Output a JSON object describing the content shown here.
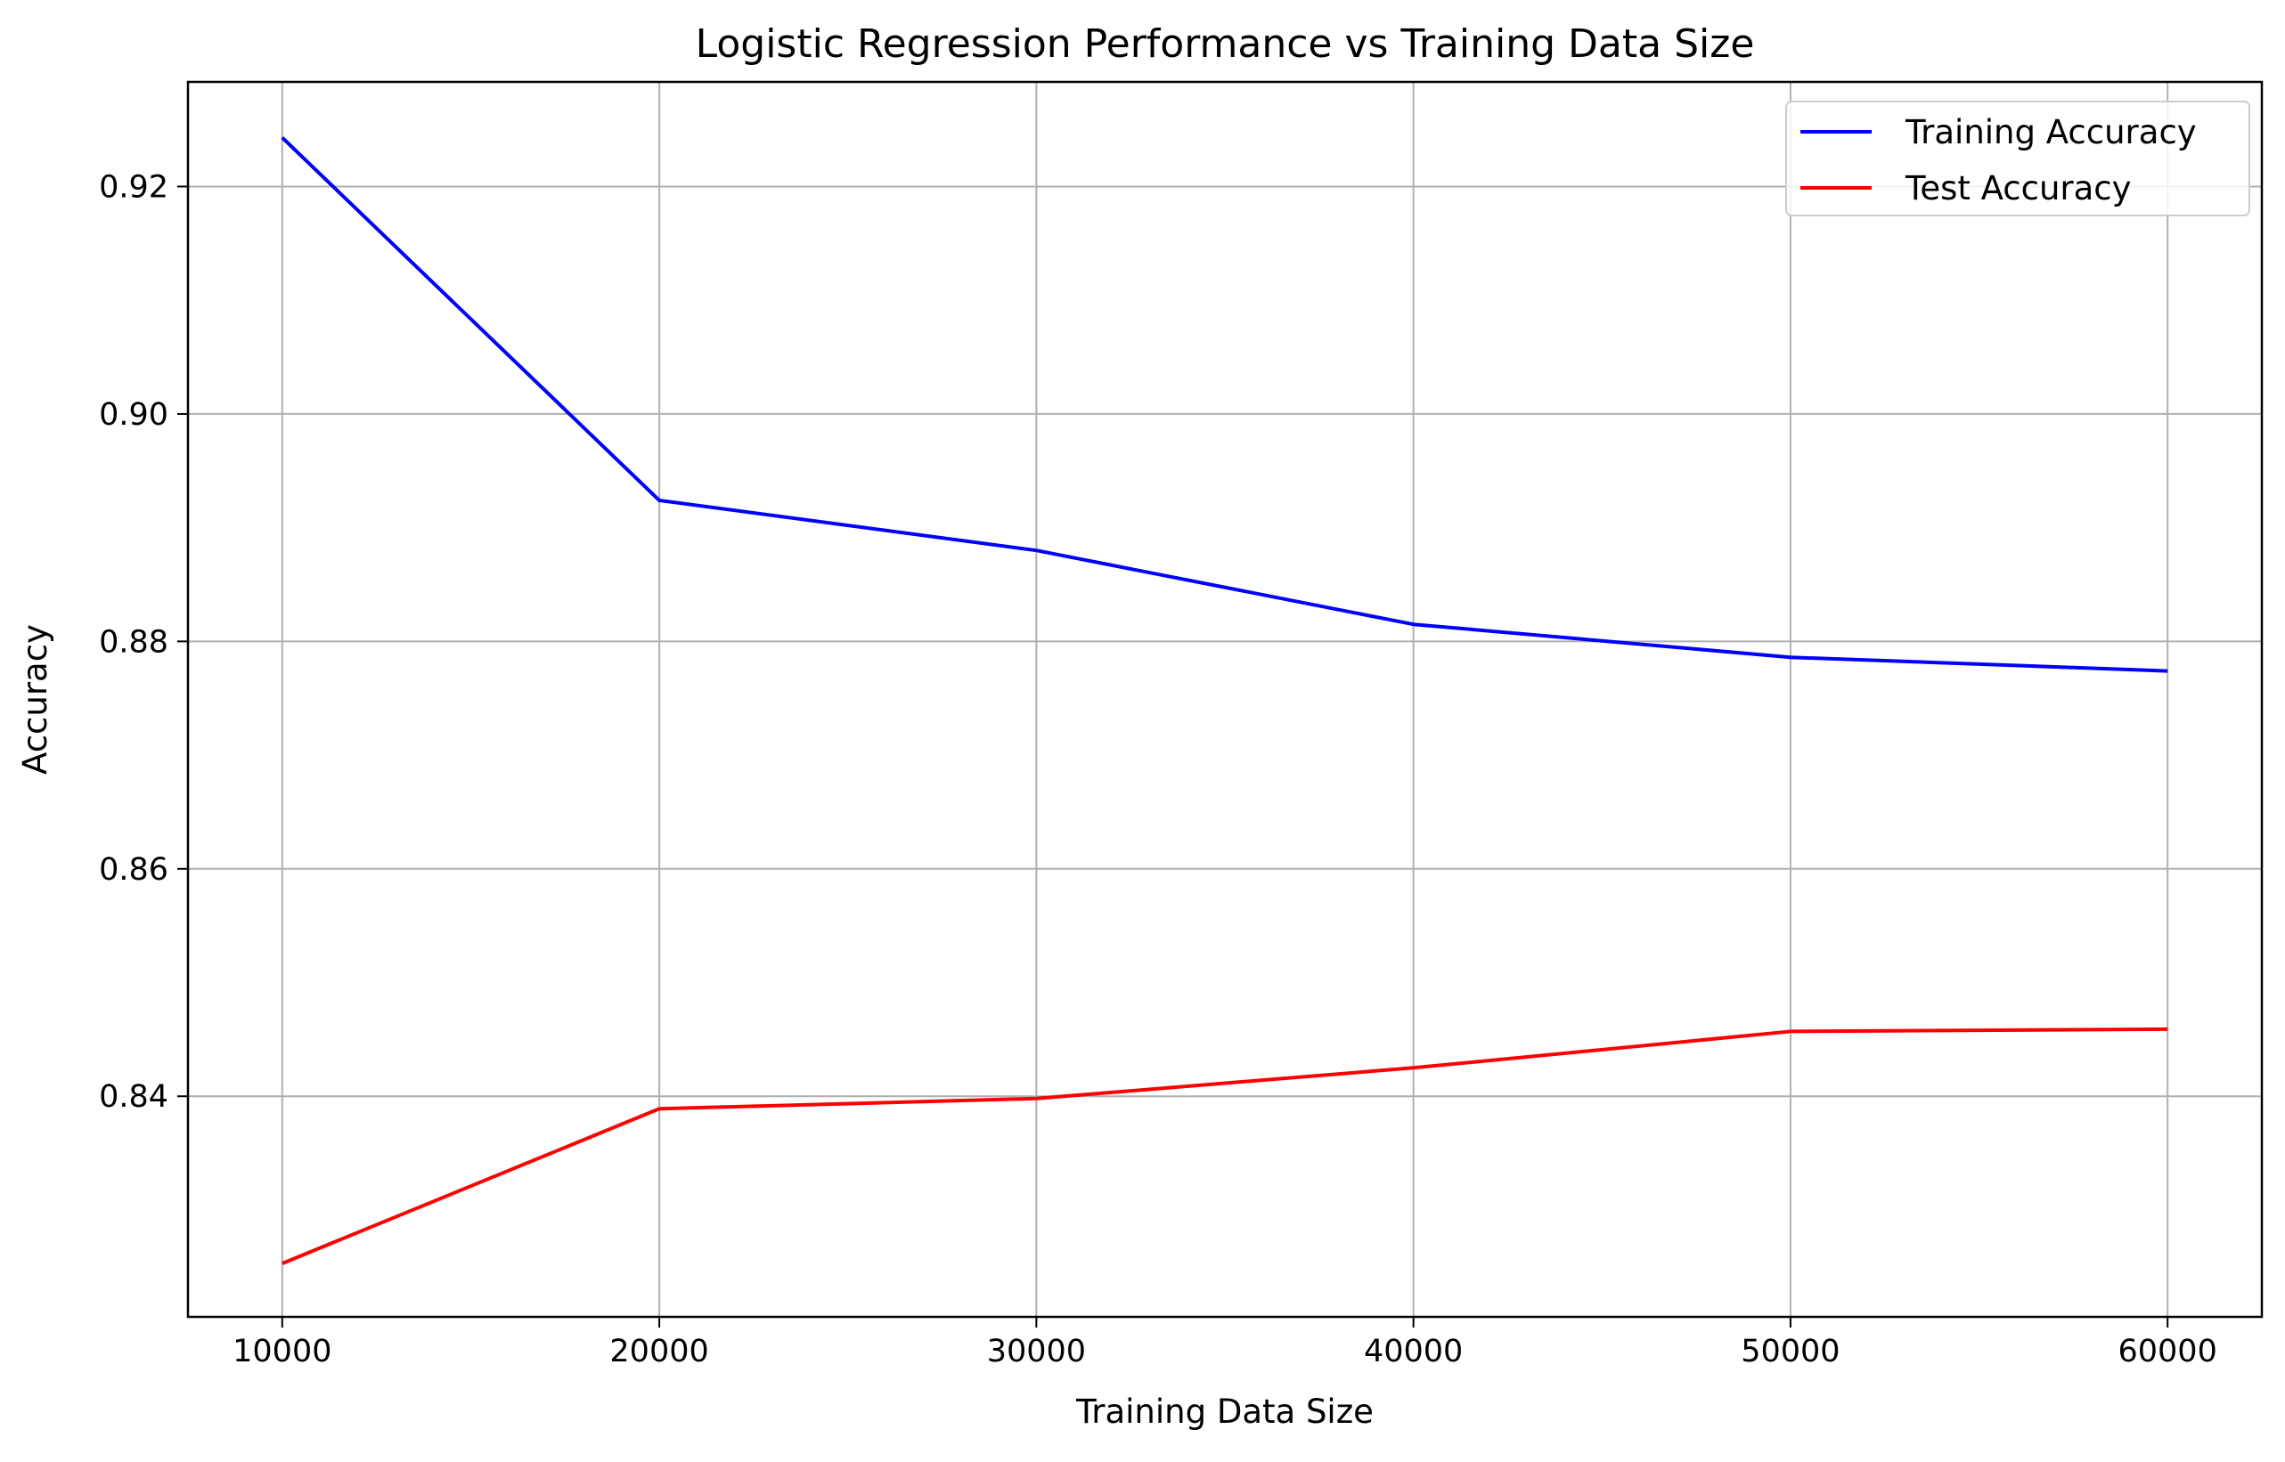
{
  "chart_data": {
    "type": "line",
    "title": "Logistic Regression Performance vs Training Data Size",
    "xlabel": "Training Data Size",
    "ylabel": "Accuracy",
    "x": [
      10000,
      20000,
      30000,
      40000,
      50000,
      60000
    ],
    "x_ticks": [
      10000,
      20000,
      30000,
      40000,
      50000,
      60000
    ],
    "x_tick_labels": [
      "10000",
      "20000",
      "30000",
      "40000",
      "50000",
      "60000"
    ],
    "y_ticks": [
      0.84,
      0.86,
      0.88,
      0.9,
      0.92
    ],
    "y_tick_labels": [
      "0.84",
      "0.86",
      "0.88",
      "0.90",
      "0.92"
    ],
    "xlim": [
      7500,
      62500
    ],
    "ylim": [
      0.8206,
      0.9292
    ],
    "grid": true,
    "legend_position": "top-right",
    "series": [
      {
        "name": "Training Accuracy",
        "color": "#0000ff",
        "values": [
          0.9243,
          0.8924,
          0.888,
          0.8815,
          0.8786,
          0.8774
        ]
      },
      {
        "name": "Test Accuracy",
        "color": "#ff0000",
        "values": [
          0.8253,
          0.8389,
          0.8398,
          0.8425,
          0.8457,
          0.8459
        ]
      }
    ]
  }
}
